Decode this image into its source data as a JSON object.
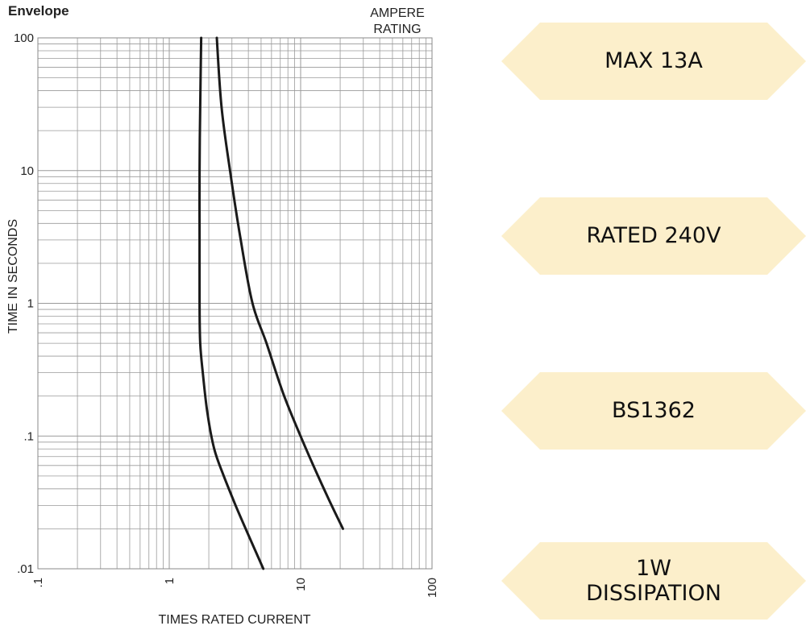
{
  "chart_data": {
    "type": "line",
    "title": "Envelope",
    "legend_title_line1": "AMPERE",
    "legend_title_line2": "RATING",
    "xlabel": "TIMES RATED CURRENT",
    "ylabel": "TIME IN SECONDS",
    "x_scale": "log",
    "y_scale": "log",
    "xlim": [
      0.1,
      100
    ],
    "ylim": [
      0.01,
      100
    ],
    "x_ticks": [
      ".1",
      "1",
      "10",
      "100"
    ],
    "y_ticks": [
      "100",
      "10",
      "1",
      ".1",
      ".01"
    ],
    "grid": true,
    "series": [
      {
        "x": [
          1.75,
          1.72,
          1.7,
          1.7,
          1.7,
          1.72,
          1.8,
          1.95,
          2.2,
          2.6,
          3.2,
          4.0,
          5.2
        ],
        "y": [
          100,
          30,
          10,
          3,
          1,
          0.5,
          0.3,
          0.15,
          0.08,
          0.05,
          0.03,
          0.018,
          0.01
        ]
      },
      {
        "x": [
          2.3,
          2.5,
          2.9,
          3.5,
          4.3,
          5.5,
          7.5,
          11.0,
          16.0,
          21.0
        ],
        "y": [
          100,
          30,
          10,
          3,
          1,
          0.5,
          0.2,
          0.08,
          0.035,
          0.02
        ]
      }
    ]
  },
  "badges": [
    {
      "label": "MAX 13A"
    },
    {
      "label": "RATED 240V"
    },
    {
      "label": "BS1362"
    },
    {
      "label": "1W\nDISSIPATION"
    }
  ],
  "colors": {
    "badge_fill": "#FCEFCB",
    "grid": "#9a9a9a",
    "curve": "#1a1a1a"
  }
}
